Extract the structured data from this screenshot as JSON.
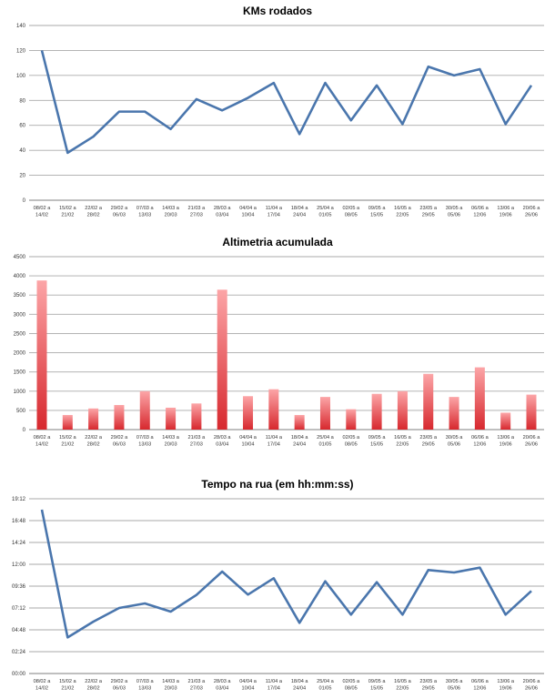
{
  "chart_data": [
    {
      "type": "line",
      "title": "KMs rodados",
      "xlabel": "",
      "ylabel": "",
      "ylim": [
        0,
        140
      ],
      "yticks": [
        "0",
        "20",
        "40",
        "60",
        "80",
        "100",
        "120",
        "140"
      ],
      "grid": true,
      "color": "#4a76ad",
      "categories": [
        [
          "08/02 a",
          "14/02"
        ],
        [
          "15/02 a",
          "21/02"
        ],
        [
          "22/02 a",
          "28/02"
        ],
        [
          "29/02 a",
          "06/03"
        ],
        [
          "07/03 a",
          "13/03"
        ],
        [
          "14/03 a",
          "20/03"
        ],
        [
          "21/03 a",
          "27/03"
        ],
        [
          "28/03 a",
          "03/04"
        ],
        [
          "04/04 a",
          "10/04"
        ],
        [
          "11/04 a",
          "17/04"
        ],
        [
          "18/04 a",
          "24/04"
        ],
        [
          "25/04 a",
          "01/05"
        ],
        [
          "02/05 a",
          "08/05"
        ],
        [
          "09/05 a",
          "15/05"
        ],
        [
          "16/05 a",
          "22/05"
        ],
        [
          "23/05 a",
          "29/05"
        ],
        [
          "30/05 a",
          "05/06"
        ],
        [
          "06/06 a",
          "12/06"
        ],
        [
          "13/06 a",
          "19/06"
        ],
        [
          "20/06 a",
          "26/06"
        ]
      ],
      "values": [
        120,
        38,
        51,
        71,
        71,
        57,
        81,
        72,
        82,
        94,
        53,
        94,
        64,
        92,
        61,
        107,
        100,
        105,
        61,
        92
      ]
    },
    {
      "type": "bar",
      "title": "Altimetria acumulada",
      "xlabel": "",
      "ylabel": "",
      "ylim": [
        0,
        4500
      ],
      "yticks": [
        "0",
        "500",
        "1000",
        "1500",
        "2000",
        "2500",
        "3000",
        "3500",
        "4000",
        "4500"
      ],
      "grid": true,
      "color": "#e8474c",
      "categories": [
        [
          "08/02 a",
          "14/02"
        ],
        [
          "15/02 a",
          "21/02"
        ],
        [
          "22/02 a",
          "28/02"
        ],
        [
          "29/02 a",
          "06/03"
        ],
        [
          "07/03 a",
          "13/03"
        ],
        [
          "14/03 a",
          "20/03"
        ],
        [
          "21/03 a",
          "27/03"
        ],
        [
          "28/03 a",
          "03/04"
        ],
        [
          "04/04 a",
          "10/04"
        ],
        [
          "11/04 a",
          "17/04"
        ],
        [
          "18/04 a",
          "24/04"
        ],
        [
          "25/04 a",
          "01/05"
        ],
        [
          "02/05 a",
          "08/05"
        ],
        [
          "09/05 a",
          "15/05"
        ],
        [
          "16/05 a",
          "22/05"
        ],
        [
          "23/05 a",
          "29/05"
        ],
        [
          "30/05 a",
          "05/06"
        ],
        [
          "06/06 a",
          "12/06"
        ],
        [
          "13/06 a",
          "19/06"
        ],
        [
          "20/06 a",
          "26/06"
        ]
      ],
      "values": [
        3880,
        380,
        550,
        640,
        1000,
        570,
        680,
        3640,
        870,
        1050,
        380,
        850,
        530,
        930,
        1000,
        1450,
        850,
        1620,
        440,
        910
      ]
    },
    {
      "type": "line",
      "title": "Tempo na rua (em hh:mm:ss)",
      "xlabel": "",
      "ylabel": "",
      "ylim": [
        "00:00",
        "19:12"
      ],
      "yticks": [
        "00:00",
        "02:24",
        "04:48",
        "07:12",
        "09:36",
        "12:00",
        "14:24",
        "16:48",
        "19:12"
      ],
      "grid": true,
      "color": "#4a76ad",
      "categories": [
        [
          "08/02 a",
          "14/02"
        ],
        [
          "15/02 a",
          "21/02"
        ],
        [
          "22/02 a",
          "28/02"
        ],
        [
          "29/02 a",
          "06/03"
        ],
        [
          "07/03 a",
          "13/03"
        ],
        [
          "14/03 a",
          "20/03"
        ],
        [
          "21/03 a",
          "27/03"
        ],
        [
          "28/03 a",
          "03/04"
        ],
        [
          "04/04 a",
          "10/04"
        ],
        [
          "11/04 a",
          "17/04"
        ],
        [
          "18/04 a",
          "24/04"
        ],
        [
          "25/04 a",
          "01/05"
        ],
        [
          "02/05 a",
          "08/05"
        ],
        [
          "09/05 a",
          "15/05"
        ],
        [
          "16/05 a",
          "22/05"
        ],
        [
          "23/05 a",
          "29/05"
        ],
        [
          "30/05 a",
          "05/06"
        ],
        [
          "06/06 a",
          "12/06"
        ],
        [
          "13/06 a",
          "19/06"
        ],
        [
          "20/06 a",
          "26/06"
        ]
      ],
      "values": [
        "18:00",
        "03:58",
        "05:42",
        "07:12",
        "07:42",
        "06:48",
        "08:38",
        "11:12",
        "08:40",
        "10:28",
        "05:34",
        "10:08",
        "06:28",
        "10:02",
        "06:28",
        "11:22",
        "11:06",
        "11:38",
        "06:28",
        "09:04"
      ]
    }
  ]
}
